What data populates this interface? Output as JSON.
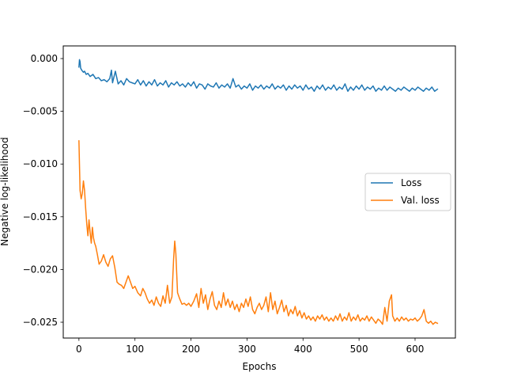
{
  "chart_data": {
    "type": "line",
    "title": "",
    "xlabel": "Epochs",
    "ylabel": "Negative log-likelihood",
    "xlim": [
      -28,
      672
    ],
    "ylim": [
      -0.0265,
      0.0012
    ],
    "xticks": [
      0,
      100,
      200,
      300,
      400,
      500,
      600
    ],
    "yticks": [
      0.0,
      -0.005,
      -0.01,
      -0.015,
      -0.02,
      -0.025
    ],
    "ytick_labels": [
      "0.000",
      "−0.005",
      "−0.010",
      "−0.015",
      "−0.020",
      "−0.025"
    ],
    "grid": false,
    "legend_position": "center-right",
    "series": [
      {
        "name": "Loss",
        "color": "#1f77b4",
        "points": [
          [
            0,
            -0.0008
          ],
          [
            1,
            -0.0001
          ],
          [
            2,
            -0.0003
          ],
          [
            3,
            -0.0009
          ],
          [
            5,
            -0.0011
          ],
          [
            8,
            -0.0013
          ],
          [
            10,
            -0.0012
          ],
          [
            13,
            -0.0015
          ],
          [
            16,
            -0.0014
          ],
          [
            20,
            -0.0017
          ],
          [
            25,
            -0.0015
          ],
          [
            30,
            -0.0019
          ],
          [
            35,
            -0.0018
          ],
          [
            40,
            -0.0021
          ],
          [
            45,
            -0.002
          ],
          [
            50,
            -0.0022
          ],
          [
            55,
            -0.0019
          ],
          [
            58,
            -0.0011
          ],
          [
            60,
            -0.0023
          ],
          [
            65,
            -0.0012
          ],
          [
            70,
            -0.0024
          ],
          [
            75,
            -0.0021
          ],
          [
            80,
            -0.0025
          ],
          [
            85,
            -0.0019
          ],
          [
            90,
            -0.0022
          ],
          [
            95,
            -0.0023
          ],
          [
            100,
            -0.0024
          ],
          [
            105,
            -0.002
          ],
          [
            110,
            -0.0025
          ],
          [
            115,
            -0.0021
          ],
          [
            120,
            -0.0026
          ],
          [
            125,
            -0.0022
          ],
          [
            130,
            -0.0025
          ],
          [
            135,
            -0.002
          ],
          [
            140,
            -0.0026
          ],
          [
            145,
            -0.0023
          ],
          [
            150,
            -0.0025
          ],
          [
            155,
            -0.0021
          ],
          [
            160,
            -0.0027
          ],
          [
            165,
            -0.0023
          ],
          [
            170,
            -0.0025
          ],
          [
            175,
            -0.0022
          ],
          [
            180,
            -0.0026
          ],
          [
            185,
            -0.0024
          ],
          [
            190,
            -0.0027
          ],
          [
            195,
            -0.0023
          ],
          [
            200,
            -0.0026
          ],
          [
            205,
            -0.0022
          ],
          [
            210,
            -0.0028
          ],
          [
            215,
            -0.0024
          ],
          [
            220,
            -0.0025
          ],
          [
            225,
            -0.0029
          ],
          [
            230,
            -0.0024
          ],
          [
            235,
            -0.0026
          ],
          [
            240,
            -0.0027
          ],
          [
            245,
            -0.0023
          ],
          [
            250,
            -0.0028
          ],
          [
            255,
            -0.0025
          ],
          [
            260,
            -0.0027
          ],
          [
            265,
            -0.0024
          ],
          [
            270,
            -0.0028
          ],
          [
            275,
            -0.0019
          ],
          [
            280,
            -0.0027
          ],
          [
            285,
            -0.0025
          ],
          [
            290,
            -0.0029
          ],
          [
            295,
            -0.0026
          ],
          [
            300,
            -0.0028
          ],
          [
            305,
            -0.0024
          ],
          [
            310,
            -0.003
          ],
          [
            315,
            -0.0026
          ],
          [
            320,
            -0.0028
          ],
          [
            325,
            -0.0025
          ],
          [
            330,
            -0.0029
          ],
          [
            335,
            -0.0026
          ],
          [
            340,
            -0.0028
          ],
          [
            345,
            -0.0024
          ],
          [
            350,
            -0.0029
          ],
          [
            355,
            -0.0026
          ],
          [
            360,
            -0.0028
          ],
          [
            365,
            -0.0025
          ],
          [
            370,
            -0.003
          ],
          [
            375,
            -0.0026
          ],
          [
            380,
            -0.0029
          ],
          [
            385,
            -0.0025
          ],
          [
            390,
            -0.0028
          ],
          [
            395,
            -0.0026
          ],
          [
            400,
            -0.003
          ],
          [
            405,
            -0.0025
          ],
          [
            410,
            -0.0029
          ],
          [
            415,
            -0.0027
          ],
          [
            420,
            -0.0031
          ],
          [
            425,
            -0.0026
          ],
          [
            430,
            -0.0029
          ],
          [
            435,
            -0.0025
          ],
          [
            440,
            -0.003
          ],
          [
            445,
            -0.0027
          ],
          [
            450,
            -0.0029
          ],
          [
            455,
            -0.0025
          ],
          [
            460,
            -0.003
          ],
          [
            465,
            -0.0027
          ],
          [
            470,
            -0.0029
          ],
          [
            475,
            -0.0024
          ],
          [
            480,
            -0.0031
          ],
          [
            485,
            -0.0027
          ],
          [
            490,
            -0.003
          ],
          [
            495,
            -0.0026
          ],
          [
            500,
            -0.0029
          ],
          [
            505,
            -0.0025
          ],
          [
            510,
            -0.003
          ],
          [
            515,
            -0.0027
          ],
          [
            520,
            -0.0029
          ],
          [
            525,
            -0.0026
          ],
          [
            530,
            -0.0031
          ],
          [
            535,
            -0.0028
          ],
          [
            540,
            -0.003
          ],
          [
            545,
            -0.0026
          ],
          [
            550,
            -0.003
          ],
          [
            555,
            -0.0027
          ],
          [
            560,
            -0.0029
          ],
          [
            565,
            -0.0031
          ],
          [
            570,
            -0.0028
          ],
          [
            575,
            -0.003
          ],
          [
            580,
            -0.0027
          ],
          [
            585,
            -0.0029
          ],
          [
            590,
            -0.0031
          ],
          [
            595,
            -0.0028
          ],
          [
            600,
            -0.003
          ],
          [
            605,
            -0.0027
          ],
          [
            610,
            -0.0029
          ],
          [
            615,
            -0.0031
          ],
          [
            620,
            -0.0028
          ],
          [
            625,
            -0.003
          ],
          [
            630,
            -0.0027
          ],
          [
            635,
            -0.0031
          ],
          [
            640,
            -0.0029
          ]
        ]
      },
      {
        "name": "Val. loss",
        "color": "#ff7f0e",
        "points": [
          [
            0,
            -0.0078
          ],
          [
            2,
            -0.0125
          ],
          [
            4,
            -0.0133
          ],
          [
            6,
            -0.0128
          ],
          [
            8,
            -0.0116
          ],
          [
            10,
            -0.0125
          ],
          [
            12,
            -0.0142
          ],
          [
            14,
            -0.0157
          ],
          [
            16,
            -0.0168
          ],
          [
            18,
            -0.0153
          ],
          [
            20,
            -0.0165
          ],
          [
            22,
            -0.0175
          ],
          [
            24,
            -0.016
          ],
          [
            26,
            -0.017
          ],
          [
            28,
            -0.0175
          ],
          [
            30,
            -0.0178
          ],
          [
            33,
            -0.0186
          ],
          [
            36,
            -0.0195
          ],
          [
            40,
            -0.0192
          ],
          [
            44,
            -0.0186
          ],
          [
            48,
            -0.0193
          ],
          [
            52,
            -0.0197
          ],
          [
            56,
            -0.019
          ],
          [
            60,
            -0.0187
          ],
          [
            64,
            -0.0198
          ],
          [
            68,
            -0.0212
          ],
          [
            72,
            -0.0214
          ],
          [
            76,
            -0.0215
          ],
          [
            80,
            -0.0218
          ],
          [
            84,
            -0.0212
          ],
          [
            88,
            -0.0206
          ],
          [
            92,
            -0.0212
          ],
          [
            96,
            -0.0218
          ],
          [
            100,
            -0.0216
          ],
          [
            105,
            -0.0222
          ],
          [
            110,
            -0.0225
          ],
          [
            114,
            -0.0218
          ],
          [
            118,
            -0.0222
          ],
          [
            122,
            -0.0228
          ],
          [
            126,
            -0.0232
          ],
          [
            130,
            -0.0229
          ],
          [
            134,
            -0.0234
          ],
          [
            138,
            -0.0226
          ],
          [
            142,
            -0.0232
          ],
          [
            146,
            -0.0235
          ],
          [
            150,
            -0.0225
          ],
          [
            154,
            -0.0232
          ],
          [
            158,
            -0.0215
          ],
          [
            162,
            -0.0232
          ],
          [
            166,
            -0.0226
          ],
          [
            169,
            -0.019
          ],
          [
            171,
            -0.0173
          ],
          [
            173,
            -0.0185
          ],
          [
            176,
            -0.0222
          ],
          [
            180,
            -0.0228
          ],
          [
            184,
            -0.0233
          ],
          [
            188,
            -0.0232
          ],
          [
            192,
            -0.0234
          ],
          [
            196,
            -0.0232
          ],
          [
            200,
            -0.0235
          ],
          [
            205,
            -0.023
          ],
          [
            210,
            -0.0223
          ],
          [
            214,
            -0.0236
          ],
          [
            218,
            -0.0218
          ],
          [
            222,
            -0.0232
          ],
          [
            226,
            -0.0224
          ],
          [
            230,
            -0.0238
          ],
          [
            234,
            -0.0228
          ],
          [
            238,
            -0.0221
          ],
          [
            242,
            -0.0234
          ],
          [
            246,
            -0.0238
          ],
          [
            250,
            -0.023
          ],
          [
            254,
            -0.0236
          ],
          [
            258,
            -0.0222
          ],
          [
            262,
            -0.0234
          ],
          [
            266,
            -0.0228
          ],
          [
            270,
            -0.0236
          ],
          [
            274,
            -0.023
          ],
          [
            278,
            -0.0238
          ],
          [
            282,
            -0.0233
          ],
          [
            286,
            -0.024
          ],
          [
            290,
            -0.0232
          ],
          [
            294,
            -0.0236
          ],
          [
            298,
            -0.0228
          ],
          [
            302,
            -0.0235
          ],
          [
            306,
            -0.0226
          ],
          [
            310,
            -0.0238
          ],
          [
            314,
            -0.0242
          ],
          [
            318,
            -0.0236
          ],
          [
            322,
            -0.0232
          ],
          [
            326,
            -0.0238
          ],
          [
            330,
            -0.0234
          ],
          [
            334,
            -0.0226
          ],
          [
            338,
            -0.024
          ],
          [
            342,
            -0.0222
          ],
          [
            346,
            -0.0238
          ],
          [
            350,
            -0.023
          ],
          [
            354,
            -0.0242
          ],
          [
            358,
            -0.0236
          ],
          [
            362,
            -0.0229
          ],
          [
            366,
            -0.024
          ],
          [
            370,
            -0.0234
          ],
          [
            374,
            -0.0244
          ],
          [
            378,
            -0.0238
          ],
          [
            382,
            -0.0242
          ],
          [
            386,
            -0.0235
          ],
          [
            390,
            -0.0244
          ],
          [
            394,
            -0.0239
          ],
          [
            398,
            -0.0246
          ],
          [
            402,
            -0.0241
          ],
          [
            406,
            -0.0247
          ],
          [
            410,
            -0.0244
          ],
          [
            414,
            -0.0248
          ],
          [
            418,
            -0.0245
          ],
          [
            422,
            -0.0249
          ],
          [
            426,
            -0.0244
          ],
          [
            430,
            -0.0247
          ],
          [
            434,
            -0.0243
          ],
          [
            438,
            -0.0248
          ],
          [
            442,
            -0.0245
          ],
          [
            446,
            -0.0249
          ],
          [
            450,
            -0.0246
          ],
          [
            454,
            -0.0249
          ],
          [
            458,
            -0.0244
          ],
          [
            462,
            -0.0248
          ],
          [
            466,
            -0.0242
          ],
          [
            470,
            -0.0249
          ],
          [
            474,
            -0.0245
          ],
          [
            478,
            -0.0248
          ],
          [
            482,
            -0.0241
          ],
          [
            486,
            -0.0249
          ],
          [
            490,
            -0.0245
          ],
          [
            494,
            -0.0248
          ],
          [
            498,
            -0.0243
          ],
          [
            502,
            -0.0249
          ],
          [
            506,
            -0.0246
          ],
          [
            510,
            -0.0248
          ],
          [
            514,
            -0.0244
          ],
          [
            518,
            -0.0249
          ],
          [
            522,
            -0.0245
          ],
          [
            526,
            -0.0248
          ],
          [
            530,
            -0.0251
          ],
          [
            534,
            -0.0247
          ],
          [
            538,
            -0.0249
          ],
          [
            542,
            -0.0252
          ],
          [
            546,
            -0.0236
          ],
          [
            550,
            -0.0249
          ],
          [
            554,
            -0.023
          ],
          [
            558,
            -0.0224
          ],
          [
            560,
            -0.0244
          ],
          [
            564,
            -0.0249
          ],
          [
            568,
            -0.0246
          ],
          [
            572,
            -0.0249
          ],
          [
            576,
            -0.0245
          ],
          [
            580,
            -0.0248
          ],
          [
            584,
            -0.0246
          ],
          [
            588,
            -0.0249
          ],
          [
            592,
            -0.0247
          ],
          [
            596,
            -0.0248
          ],
          [
            600,
            -0.0246
          ],
          [
            604,
            -0.0249
          ],
          [
            608,
            -0.0247
          ],
          [
            612,
            -0.0244
          ],
          [
            616,
            -0.0238
          ],
          [
            620,
            -0.0249
          ],
          [
            624,
            -0.0251
          ],
          [
            628,
            -0.0249
          ],
          [
            632,
            -0.0252
          ],
          [
            636,
            -0.025
          ],
          [
            640,
            -0.0251
          ]
        ]
      }
    ]
  }
}
